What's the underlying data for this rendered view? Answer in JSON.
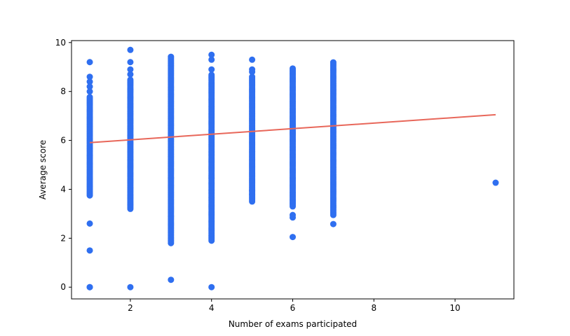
{
  "chart_data": {
    "type": "scatter",
    "title": "",
    "xlabel": "Number of exams participated",
    "ylabel": "Average score",
    "xlim": [
      0.55,
      11.45
    ],
    "ylim": [
      -0.48,
      10.08
    ],
    "xticks": [
      2,
      4,
      6,
      8,
      10
    ],
    "yticks": [
      0,
      2,
      4,
      6,
      8,
      10
    ],
    "grid": false,
    "colors": {
      "points": "#2f6ff0",
      "trend": "#e8675a"
    },
    "series": [
      {
        "type": "scatter",
        "columns": [
          {
            "x": 1,
            "min": 3.75,
            "max": 7.8,
            "extras": [
              0,
              0,
              1.5,
              2.6,
              8.0,
              8.2,
              8.4,
              8.6,
              9.2
            ]
          },
          {
            "x": 2,
            "min": 3.2,
            "max": 8.5,
            "extras": [
              0,
              8.7,
              8.9,
              9.2,
              9.7
            ]
          },
          {
            "x": 3,
            "min": 1.8,
            "max": 9.45,
            "extras": [
              0.3
            ]
          },
          {
            "x": 4,
            "min": 1.9,
            "max": 8.7,
            "extras": [
              0,
              8.9,
              9.3,
              9.5
            ]
          },
          {
            "x": 5,
            "min": 3.5,
            "max": 8.6,
            "extras": [
              3.8,
              3.95,
              8.8,
              8.9,
              9.3
            ]
          },
          {
            "x": 6,
            "min": 3.3,
            "max": 8.95,
            "extras": [
              2.05,
              2.85,
              2.95
            ]
          },
          {
            "x": 7,
            "min": 2.95,
            "max": 9.2,
            "extras": [
              2.58
            ]
          },
          {
            "x": 11,
            "min": 4.27,
            "max": 4.27,
            "extras": []
          }
        ]
      },
      {
        "type": "line",
        "x": [
          1,
          11
        ],
        "y": [
          5.91,
          7.05
        ]
      }
    ]
  }
}
